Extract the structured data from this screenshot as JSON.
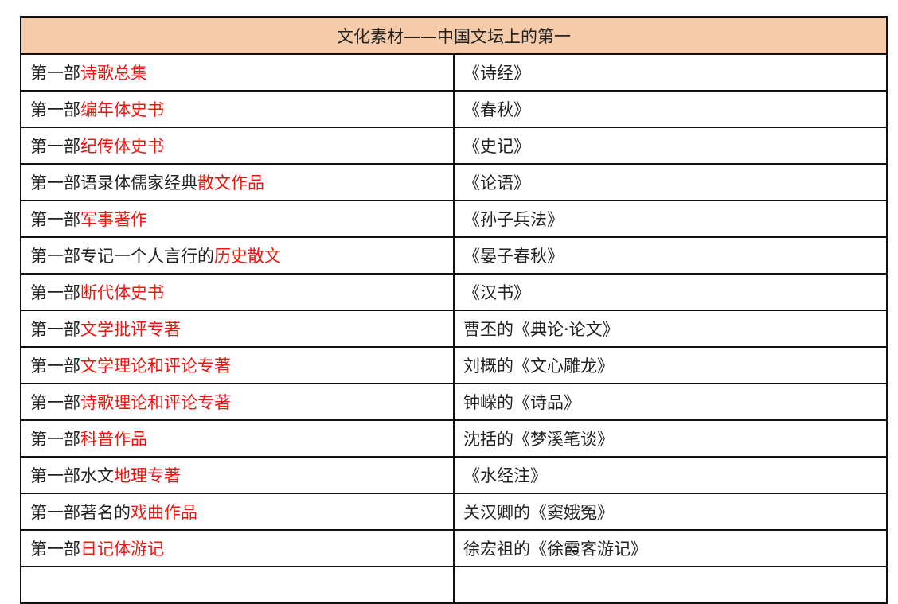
{
  "title": "文化素材——中国文坛上的第一",
  "colors": {
    "header_bg": "#f6cbaa",
    "highlight": "#f0140f"
  },
  "rows": [
    {
      "prefix": "第一部",
      "highlight": "诗歌总集",
      "work": "《诗经》"
    },
    {
      "prefix": "第一部",
      "highlight": "编年体史书",
      "work": "《春秋》"
    },
    {
      "prefix": "第一部",
      "highlight": "纪传体史书",
      "work": "《史记》"
    },
    {
      "prefix": "第一部语录体儒家经典",
      "highlight": "散文作品",
      "work": "《论语》"
    },
    {
      "prefix": "第一部",
      "highlight": "军事著作",
      "work": "《孙子兵法》"
    },
    {
      "prefix": "第一部专记一个人言行的",
      "highlight": "历史散文",
      "work": "《晏子春秋》"
    },
    {
      "prefix": "第一部",
      "highlight": "断代体史书",
      "work": "《汉书》"
    },
    {
      "prefix": "第一部",
      "highlight": "文学批评专著",
      "work": "曹丕的《典论·论文》"
    },
    {
      "prefix": "第一部",
      "highlight": "文学理论和评论专著",
      "work": "刘概的《文心雕龙》"
    },
    {
      "prefix": "第一部",
      "highlight": "诗歌理论和评论专著",
      "work": "钟嵘的《诗品》"
    },
    {
      "prefix": "第一部",
      "highlight": "科普作品",
      "work": "沈括的《梦溪笔谈》"
    },
    {
      "prefix": "第一部水文",
      "highlight": "地理专著",
      "work": "《水经注》"
    },
    {
      "prefix": "第一部著名的",
      "highlight": "戏曲作品",
      "work": "关汉卿的《窦娥冤》"
    },
    {
      "prefix": "第一部",
      "highlight": "日记体游记",
      "work": "徐宏祖的《徐霞客游记》"
    }
  ]
}
